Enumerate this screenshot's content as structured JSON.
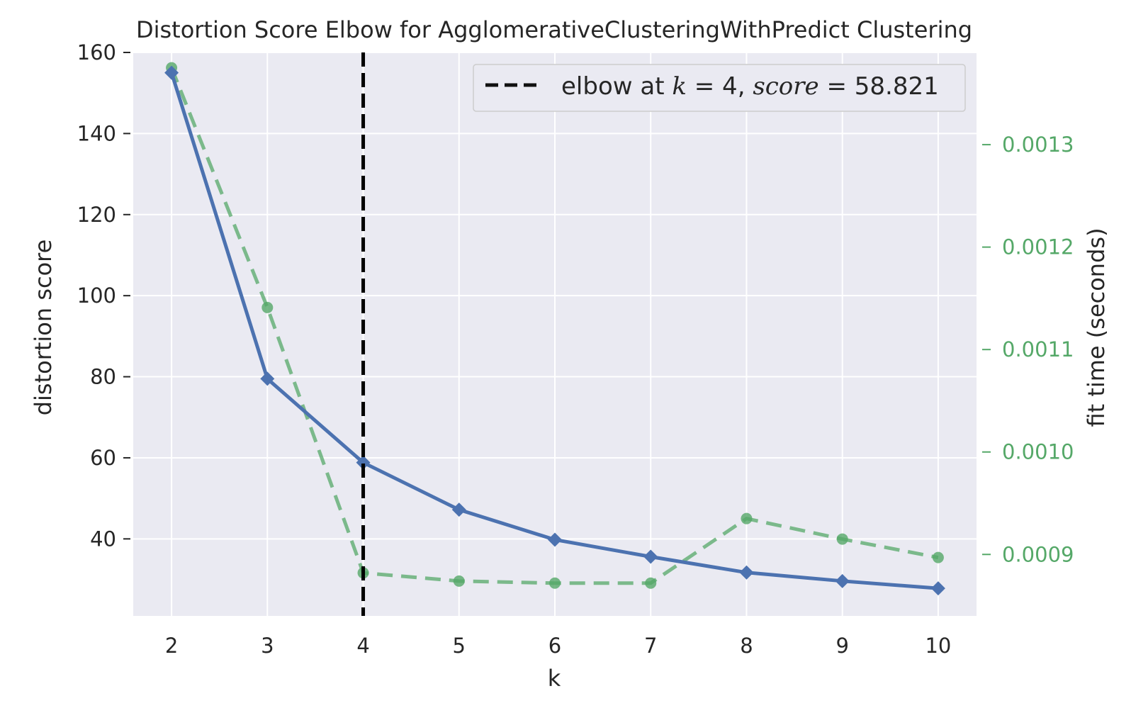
{
  "chart_data": {
    "type": "line",
    "title": "Distortion Score Elbow for AgglomerativeClusteringWithPredict Clustering",
    "xlabel": "k",
    "ylabel": "distortion score",
    "y2label": "fit time (seconds)",
    "x": [
      2,
      3,
      4,
      5,
      6,
      7,
      8,
      9,
      10
    ],
    "xticks": [
      "2",
      "3",
      "4",
      "5",
      "6",
      "7",
      "8",
      "9",
      "10"
    ],
    "ylim": [
      21,
      160
    ],
    "yticks": [
      40,
      60,
      80,
      100,
      120,
      140,
      160
    ],
    "yticklabels": [
      "40",
      "60",
      "80",
      "100",
      "120",
      "140",
      "160"
    ],
    "y2lim": [
      0.00084,
      0.00139
    ],
    "y2ticks": [
      0.0009,
      0.001,
      0.0011,
      0.0012,
      0.0013
    ],
    "y2ticklabels": [
      "0.0009",
      "0.0010",
      "0.0011",
      "0.0012",
      "0.0013"
    ],
    "grid": true,
    "legend_position": "top-right",
    "series": [
      {
        "axis": "left",
        "values": [
          155.0,
          79.5,
          58.821,
          47.2,
          39.8,
          35.6,
          31.7,
          29.6,
          27.8
        ],
        "color": "#4c72b0",
        "style": "solid",
        "marker": "diamond"
      },
      {
        "name": "fit time (seconds)",
        "axis": "right",
        "values": [
          0.001375,
          0.001141,
          0.000882,
          0.000874,
          0.000872,
          0.000872,
          0.000935,
          0.000915,
          0.000897
        ],
        "color": "#55a868",
        "style": "dashed",
        "marker": "circle"
      }
    ],
    "elbow": {
      "k": 4,
      "score": 58.821,
      "label_prefix": "elbow at ",
      "label_k_var": "k",
      "label_k_eq": " = 4, ",
      "label_score_var": "score",
      "label_score_eq": " = 58.821"
    },
    "colors": {
      "background": "#eaeaf2",
      "grid": "#ffffff",
      "text": "#262626",
      "right_axis": "#55a868",
      "elbow": "#000000"
    }
  }
}
